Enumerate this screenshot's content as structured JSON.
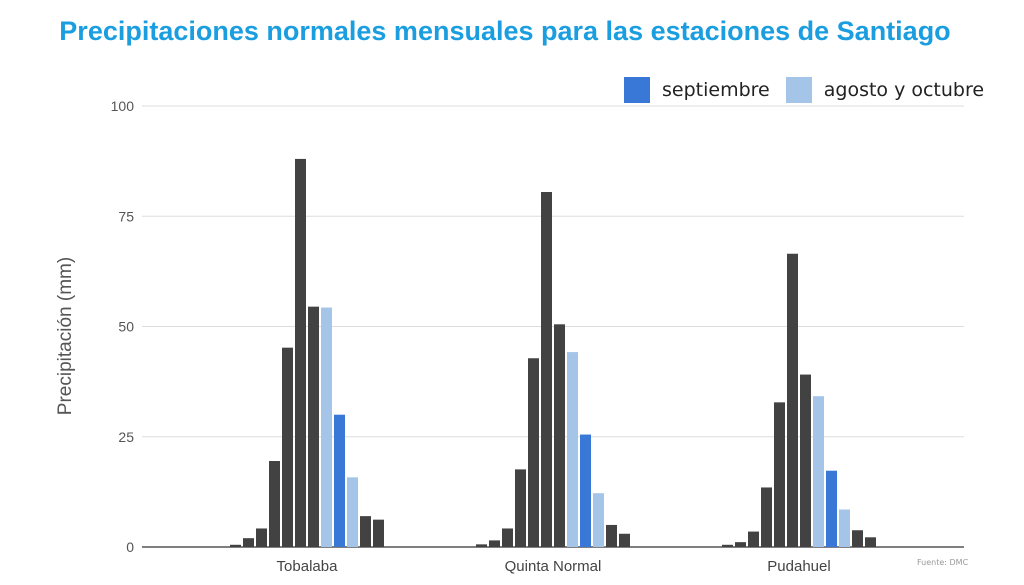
{
  "chart_data": {
    "type": "bar",
    "title": "Precipitaciones normales mensuales para las estaciones de Santiago",
    "ylabel": "Precipitación (mm)",
    "ylim": [
      0,
      100
    ],
    "yticks": [
      0,
      25,
      50,
      75,
      100
    ],
    "grid": true,
    "legend_position": "top-right",
    "legend": [
      {
        "label": "septiembre",
        "color": "#3a78d8"
      },
      {
        "label": "agosto y octubre",
        "color": "#a4c5e8"
      }
    ],
    "default_color": "#424242",
    "categories": [
      "Tobalaba",
      "Quinta Normal",
      "Pudahuel"
    ],
    "series_per_category": 12,
    "bar_colors": [
      "#424242",
      "#424242",
      "#424242",
      "#424242",
      "#424242",
      "#424242",
      "#424242",
      "#a4c5e8",
      "#3a78d8",
      "#a4c5e8",
      "#424242",
      "#424242"
    ],
    "values": [
      [
        0.5,
        2.0,
        4.2,
        19.5,
        45.2,
        88.0,
        54.5,
        54.3,
        30.0,
        15.8,
        7.0,
        6.2
      ],
      [
        0.6,
        1.5,
        4.2,
        17.6,
        42.8,
        80.5,
        50.5,
        44.2,
        25.5,
        12.2,
        5.0,
        3.0
      ],
      [
        0.5,
        1.1,
        3.5,
        13.5,
        32.8,
        66.5,
        39.1,
        34.2,
        17.3,
        8.5,
        3.8,
        2.2
      ]
    ]
  },
  "source": "Fuente: DMC"
}
